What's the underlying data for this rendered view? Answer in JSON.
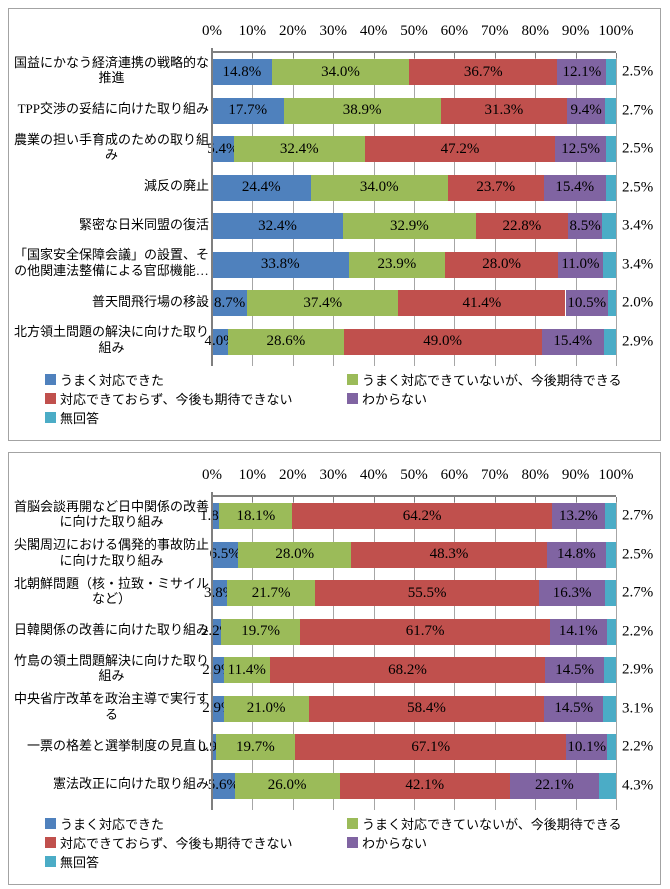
{
  "colors": {
    "series_blue": "#4F81BD",
    "series_green": "#9BBB59",
    "series_red": "#C0504D",
    "series_purple": "#8064A2",
    "series_cyan": "#4BACC6",
    "gridline": "#A6A6A6",
    "axis_line": "#7F7F7F",
    "panel_border": "#A3A3A3"
  },
  "chart_data": [
    {
      "type": "bar",
      "stacked": true,
      "orientation": "horizontal",
      "unit": "%",
      "grid": true,
      "legend_position": "bottom",
      "x_axis": {
        "position": "top",
        "min": 0,
        "max": 100,
        "tick_labels": [
          "0%",
          "10%",
          "20%",
          "30%",
          "40%",
          "50%",
          "60%",
          "70%",
          "80%",
          "90%",
          "100%"
        ]
      },
      "categories": [
        "国益にかなう経済連携の戦略的な\n推進",
        "TPP交渉の妥結に向けた取り組み",
        "農業の担い手育成のための取り組\nみ",
        "減反の廃止",
        "緊密な日米同盟の復活",
        "「国家安全保障会議」の設置、そ\nの他関連法整備による官邸機能…",
        "普天間飛行場の移設",
        "北方領土問題の解決に向けた取り\n組み"
      ],
      "series": [
        {
          "name": "うまく対応できた",
          "color": "#4F81BD",
          "values": [
            14.8,
            17.7,
            5.4,
            24.4,
            32.4,
            33.8,
            8.7,
            4.0
          ]
        },
        {
          "name": "うまく対応できていないが、今後期待できる",
          "color": "#9BBB59",
          "values": [
            34.0,
            38.9,
            32.4,
            34.0,
            32.9,
            23.9,
            37.4,
            28.6
          ]
        },
        {
          "name": "対応できておらず、今後も期待できない",
          "color": "#C0504D",
          "values": [
            36.7,
            31.3,
            47.2,
            23.7,
            22.8,
            28.0,
            41.4,
            49.0
          ]
        },
        {
          "name": "わからない",
          "color": "#8064A2",
          "values": [
            12.1,
            9.4,
            12.5,
            15.4,
            8.5,
            11.0,
            10.5,
            15.4
          ]
        },
        {
          "name": "無回答",
          "color": "#4BACC6",
          "values": [
            2.5,
            2.7,
            2.5,
            2.5,
            3.4,
            3.4,
            2.0,
            2.9
          ],
          "labels_outside": true
        }
      ]
    },
    {
      "type": "bar",
      "stacked": true,
      "orientation": "horizontal",
      "unit": "%",
      "grid": true,
      "legend_position": "bottom",
      "x_axis": {
        "position": "top",
        "min": 0,
        "max": 100,
        "tick_labels": [
          "0%",
          "10%",
          "20%",
          "30%",
          "40%",
          "50%",
          "60%",
          "70%",
          "80%",
          "90%",
          "100%"
        ]
      },
      "categories": [
        "首脳会談再開など日中関係の改善\nに向けた取り組み",
        "尖閣周辺における偶発的事故防止\nに向けた取り組み",
        "北朝鮮問題（核・拉致・ミサイル\nなど）",
        "日韓関係の改善に向けた取り組み",
        "竹島の領土問題解決に向けた取り\n組み",
        "中央省庁改革を政治主導で実行す\nる",
        "一票の格差と選挙制度の見直し",
        "憲法改正に向けた取り組み"
      ],
      "series": [
        {
          "name": "うまく対応できた",
          "color": "#4F81BD",
          "values": [
            1.8,
            6.5,
            3.8,
            2.2,
            2.9,
            2.9,
            0.9,
            5.6
          ]
        },
        {
          "name": "うまく対応できていないが、今後期待できる",
          "color": "#9BBB59",
          "values": [
            18.1,
            28.0,
            21.7,
            19.7,
            11.4,
            21.0,
            19.7,
            26.0
          ]
        },
        {
          "name": "対応できておらず、今後も期待できない",
          "color": "#C0504D",
          "values": [
            64.2,
            48.3,
            55.5,
            61.7,
            68.2,
            58.4,
            67.1,
            42.1
          ]
        },
        {
          "name": "わからない",
          "color": "#8064A2",
          "values": [
            13.2,
            14.8,
            16.3,
            14.1,
            14.5,
            14.5,
            10.1,
            22.1
          ]
        },
        {
          "name": "無回答",
          "color": "#4BACC6",
          "values": [
            2.7,
            2.5,
            2.7,
            2.2,
            2.9,
            3.1,
            2.2,
            4.3
          ],
          "labels_outside": true
        }
      ]
    }
  ]
}
